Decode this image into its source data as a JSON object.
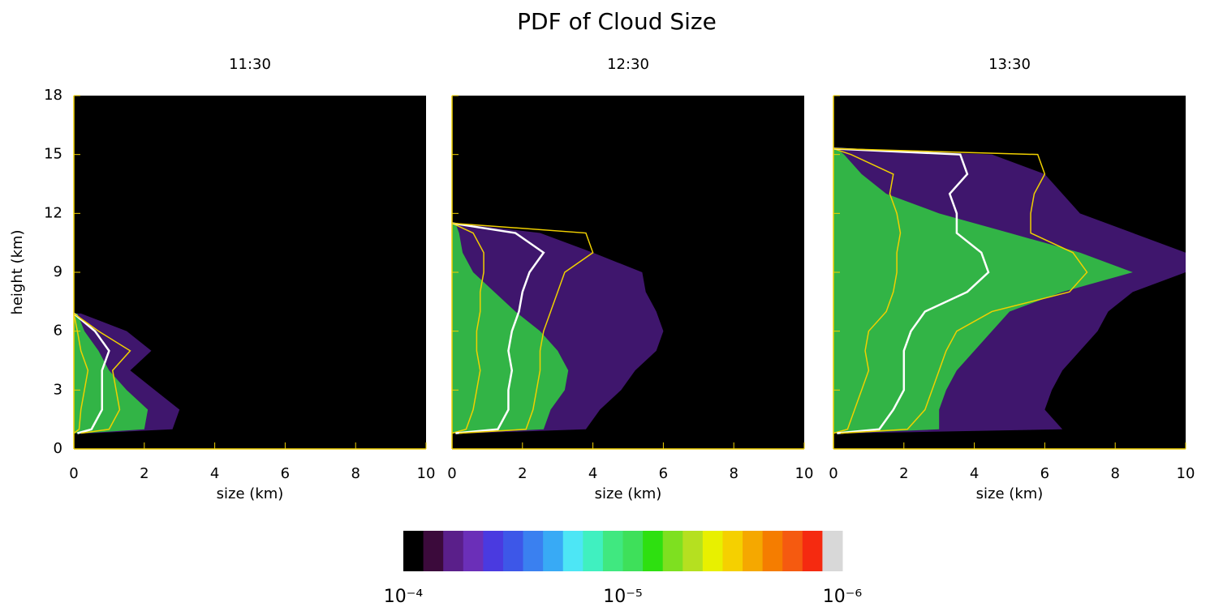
{
  "title": "PDF of Cloud Size",
  "chart_data": [
    {
      "type": "profile",
      "subtitle": "11:30",
      "xlabel": "size (km)",
      "ylabel": "height (km)",
      "xlim": [
        0,
        10
      ],
      "xticks": [
        0,
        2,
        4,
        6,
        8,
        10
      ],
      "ylim": [
        0,
        18
      ],
      "yticks": [
        0,
        3,
        6,
        9,
        12,
        15,
        18
      ],
      "y": [
        0.8,
        1,
        2,
        3,
        4,
        5,
        6,
        6.9
      ],
      "series": [
        {
          "color": "#4a1a80",
          "fill": true,
          "values": [
            0.5,
            2.8,
            3.0,
            2.3,
            1.6,
            2.2,
            1.5,
            0.2
          ]
        },
        {
          "color": "#30d040",
          "fill": true,
          "values": [
            0.3,
            2.0,
            2.1,
            1.5,
            1.0,
            0.7,
            0.3,
            0.1
          ]
        },
        {
          "color": "#f0d000",
          "values": [
            0,
            0.15,
            0.2,
            0.3,
            0.4,
            0.2,
            0.1,
            0
          ]
        },
        {
          "color": "#ffffff",
          "values": [
            0.1,
            0.5,
            0.8,
            0.8,
            0.8,
            1.0,
            0.6,
            0
          ]
        },
        {
          "color": "#f0d000",
          "values": [
            0.2,
            1.0,
            1.3,
            1.2,
            1.1,
            1.6,
            0.7,
            0
          ]
        }
      ]
    },
    {
      "type": "profile",
      "subtitle": "12:30",
      "xlabel": "size (km)",
      "xlim": [
        0,
        10
      ],
      "xticks": [
        0,
        2,
        4,
        6,
        8,
        10
      ],
      "ylim": [
        0,
        18
      ],
      "yticks": [
        0,
        3,
        6,
        9,
        12,
        15,
        18
      ],
      "y": [
        0.8,
        1,
        2,
        3,
        4,
        5,
        6,
        7,
        8,
        9,
        10,
        11,
        11.5
      ],
      "series": [
        {
          "color": "#4a1a80",
          "fill": true,
          "values": [
            0.5,
            3.8,
            4.2,
            4.8,
            5.2,
            5.8,
            6.0,
            5.8,
            5.5,
            5.4,
            4.0,
            2.5,
            0.2
          ]
        },
        {
          "color": "#30d040",
          "fill": true,
          "values": [
            0.3,
            2.6,
            2.8,
            3.2,
            3.3,
            3.0,
            2.5,
            1.8,
            1.2,
            0.6,
            0.3,
            0.2,
            0.1
          ]
        },
        {
          "color": "#f0d000",
          "values": [
            0,
            0.4,
            0.6,
            0.7,
            0.8,
            0.7,
            0.7,
            0.8,
            0.8,
            0.9,
            0.9,
            0.6,
            0
          ]
        },
        {
          "color": "#ffffff",
          "values": [
            0.1,
            1.3,
            1.6,
            1.6,
            1.7,
            1.6,
            1.7,
            1.9,
            2.0,
            2.2,
            2.6,
            1.8,
            0
          ]
        },
        {
          "color": "#f0d000",
          "values": [
            0.2,
            2.1,
            2.3,
            2.4,
            2.5,
            2.5,
            2.6,
            2.8,
            3.0,
            3.2,
            4.0,
            3.8,
            0
          ]
        }
      ]
    },
    {
      "type": "profile",
      "subtitle": "13:30",
      "xlabel": "size (km)",
      "xlim": [
        0,
        10
      ],
      "xticks": [
        0,
        2,
        4,
        6,
        8,
        10
      ],
      "ylim": [
        0,
        18
      ],
      "yticks": [
        0,
        3,
        6,
        9,
        12,
        15,
        18
      ],
      "y": [
        0.8,
        1,
        2,
        3,
        4,
        5,
        6,
        7,
        8,
        9,
        10,
        11,
        12,
        13,
        14,
        15,
        15.3
      ],
      "series": [
        {
          "color": "#4a1a80",
          "fill": true,
          "values": [
            0.5,
            6.5,
            6.0,
            6.2,
            6.5,
            7.0,
            7.5,
            7.8,
            8.5,
            10,
            10,
            8.5,
            7.0,
            6.5,
            6.0,
            4.5,
            0.3
          ]
        },
        {
          "color": "#30d040",
          "fill": true,
          "values": [
            0.3,
            3.0,
            3.0,
            3.2,
            3.5,
            4.0,
            4.5,
            5.0,
            6.5,
            8.5,
            7.0,
            5.0,
            3.0,
            1.5,
            0.8,
            0.3,
            0.1
          ]
        },
        {
          "color": "#f0d000",
          "values": [
            0,
            0.4,
            0.6,
            0.8,
            1.0,
            0.9,
            1.0,
            1.5,
            1.7,
            1.8,
            1.8,
            1.9,
            1.8,
            1.6,
            1.7,
            0.5,
            0
          ]
        },
        {
          "color": "#ffffff",
          "values": [
            0.1,
            1.3,
            1.7,
            2.0,
            2.0,
            2.0,
            2.2,
            2.6,
            3.8,
            4.4,
            4.2,
            3.5,
            3.5,
            3.3,
            3.8,
            3.6,
            0
          ]
        },
        {
          "color": "#f0d000",
          "values": [
            0.2,
            2.1,
            2.6,
            2.8,
            3.0,
            3.2,
            3.5,
            4.5,
            6.7,
            7.2,
            6.8,
            5.6,
            5.6,
            5.7,
            6.0,
            5.8,
            0
          ]
        }
      ]
    }
  ],
  "colorbar": {
    "log": true,
    "clim": [
      0.0001,
      1e-06
    ],
    "colors": [
      "#000000",
      "#3b0a3b",
      "#5a1f8a",
      "#6b2fb8",
      "#4a3ae0",
      "#3d57e8",
      "#3a80f0",
      "#38aaf5",
      "#4de6f5",
      "#40f0c0",
      "#40e880",
      "#3ee05a",
      "#2ee010",
      "#7ee020",
      "#b5e020",
      "#e8f000",
      "#f5d000",
      "#f5a800",
      "#f57d00",
      "#f55a10",
      "#f52a10",
      "#d8d8d8"
    ],
    "ticks": [
      {
        "value": 0.0001,
        "label": "10⁻⁴"
      },
      {
        "value": 1e-05,
        "label": "10⁻⁵"
      },
      {
        "value": 1e-06,
        "label": "10⁻⁶"
      }
    ]
  }
}
